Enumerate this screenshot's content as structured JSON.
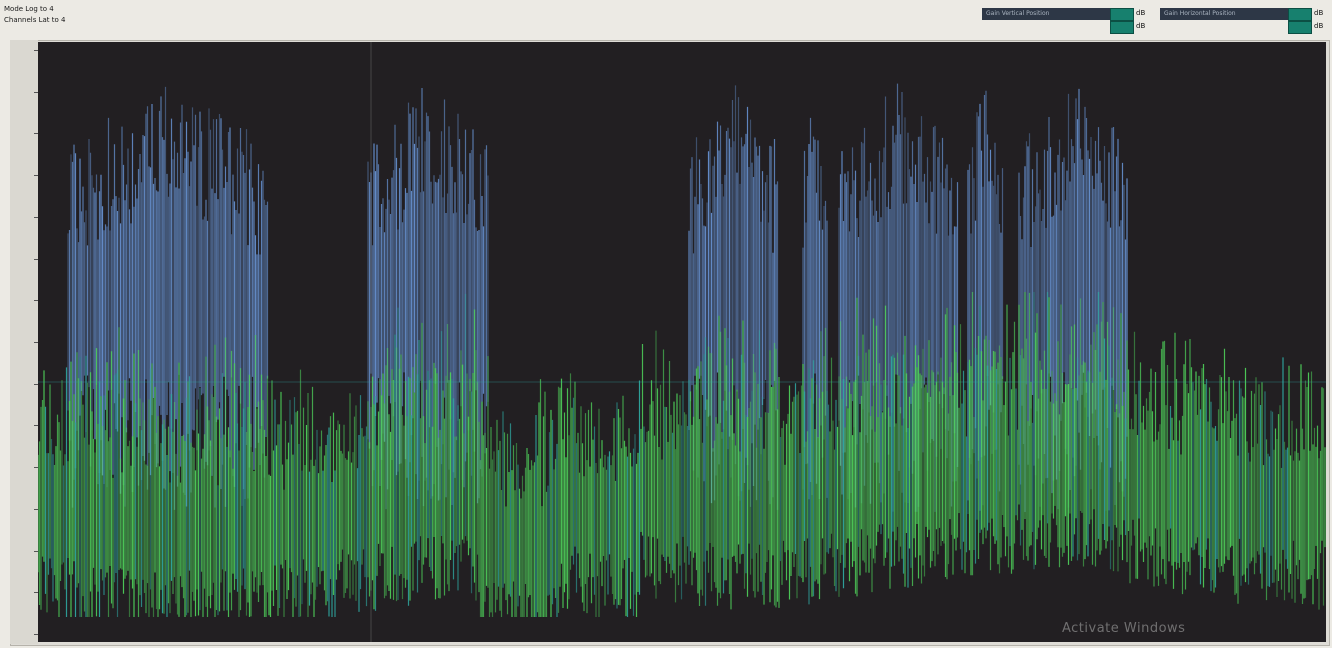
{
  "header": {
    "mode_line": "Mode Log to 4",
    "channels_line": "Channels Lat to 4"
  },
  "controls": [
    {
      "label": "Gain Vertical Position",
      "tag": "dB"
    },
    {
      "label": "Gain Horizontal Position",
      "tag": "dB"
    }
  ],
  "y_axis": {
    "ticks": [
      "",
      "",
      "",
      "",
      "",
      "",
      "",
      "",
      "",
      "",
      "",
      "",
      "",
      "",
      ""
    ]
  },
  "plot": {
    "background": "#221f22",
    "blue_color": "#6f9fe6",
    "green_color": "#4ed05a",
    "teal_color": "#2fa7a0"
  },
  "overlay": {
    "watermark": "Activate Windows"
  }
}
